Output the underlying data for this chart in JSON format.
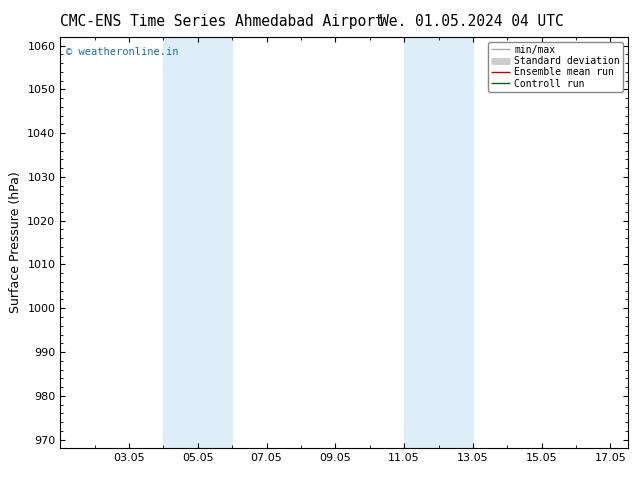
{
  "title": "CMC-ENS Time Series Ahmedabad Airport",
  "title2": "We. 01.05.2024 04 UTC",
  "ylabel": "Surface Pressure (hPa)",
  "watermark": "© weatheronline.in",
  "ylim": [
    968,
    1062
  ],
  "yticks": [
    970,
    980,
    990,
    1000,
    1010,
    1020,
    1030,
    1040,
    1050,
    1060
  ],
  "xtick_labels": [
    "03.05",
    "05.05",
    "07.05",
    "09.05",
    "11.05",
    "13.05",
    "15.05",
    "17.05"
  ],
  "xtick_positions": [
    3,
    5,
    7,
    9,
    11,
    13,
    15,
    17
  ],
  "xlim": [
    1.0,
    17.5
  ],
  "shade_bands": [
    {
      "xmin": 4.0,
      "xmax": 6.0
    },
    {
      "xmin": 11.0,
      "xmax": 13.0
    }
  ],
  "shade_color": "#ddeef8",
  "legend_entries": [
    {
      "label": "min/max",
      "color": "#aaaaaa",
      "lw": 1.0
    },
    {
      "label": "Standard deviation",
      "color": "#cccccc",
      "lw": 5
    },
    {
      "label": "Ensemble mean run",
      "color": "#cc0000",
      "lw": 1.0
    },
    {
      "label": "Controll run",
      "color": "#006600",
      "lw": 1.0
    }
  ],
  "bg_color": "#ffffff",
  "plot_bg_color": "#ffffff",
  "watermark_color": "#1a6faf",
  "title_fontsize": 10.5,
  "ylabel_fontsize": 9,
  "tick_fontsize": 8,
  "watermark_fontsize": 7.5,
  "legend_fontsize": 7
}
